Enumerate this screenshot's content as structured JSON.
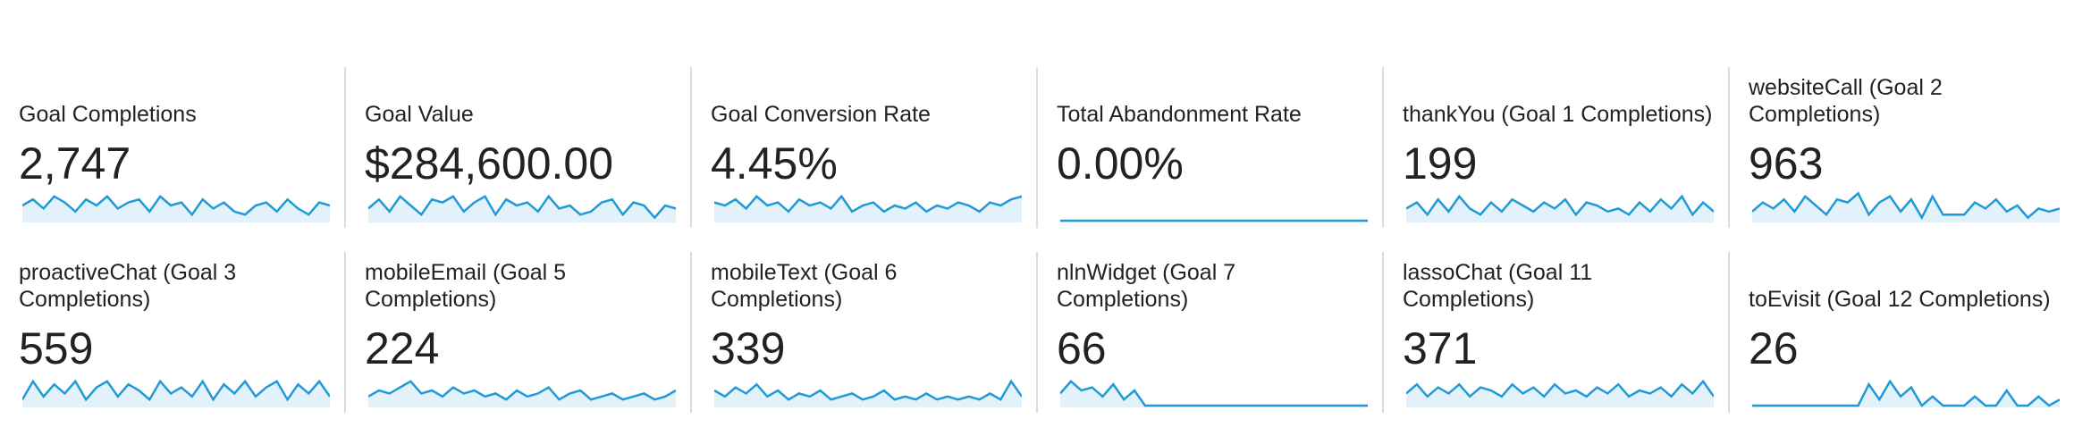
{
  "metrics": [
    {
      "label": "Goal Completions",
      "value": "2,747",
      "sparkline": [
        5,
        7,
        4,
        8,
        6,
        3,
        7,
        5,
        8,
        4,
        6,
        7,
        3,
        8,
        5,
        6,
        2,
        7,
        4,
        6,
        3,
        2,
        5,
        6,
        3,
        7,
        4,
        2,
        6,
        5
      ]
    },
    {
      "label": "Goal Value",
      "value": "$284,600.00",
      "sparkline": [
        4,
        7,
        3,
        8,
        5,
        2,
        7,
        6,
        8,
        3,
        6,
        8,
        2,
        7,
        5,
        6,
        3,
        8,
        4,
        5,
        2,
        3,
        6,
        7,
        2,
        6,
        5,
        1,
        5,
        4
      ]
    },
    {
      "label": "Goal Conversion Rate",
      "value": "4.45%",
      "sparkline": [
        6,
        5,
        7,
        4,
        8,
        5,
        6,
        3,
        7,
        5,
        6,
        4,
        8,
        3,
        5,
        6,
        3,
        5,
        4,
        6,
        3,
        5,
        4,
        6,
        5,
        3,
        6,
        5,
        7,
        8
      ]
    },
    {
      "label": "Total Abandonment Rate",
      "value": "0.00%",
      "sparkline": [
        0,
        0,
        0,
        0,
        0,
        0,
        0,
        0,
        0,
        0,
        0,
        0,
        0,
        0,
        0,
        0,
        0,
        0,
        0,
        0,
        0,
        0,
        0,
        0,
        0,
        0,
        0,
        0,
        0,
        0
      ]
    },
    {
      "label": "thankYou (Goal 1 Completions)",
      "value": "199",
      "sparkline": [
        4,
        6,
        2,
        7,
        3,
        8,
        4,
        2,
        6,
        3,
        7,
        5,
        3,
        6,
        4,
        7,
        2,
        6,
        5,
        3,
        4,
        2,
        6,
        3,
        7,
        4,
        8,
        2,
        6,
        3
      ]
    },
    {
      "label": "websiteCall (Goal 2 Completions)",
      "value": "963",
      "sparkline": [
        3,
        6,
        4,
        7,
        3,
        8,
        5,
        2,
        7,
        6,
        9,
        2,
        6,
        8,
        3,
        7,
        1,
        8,
        2,
        2,
        2,
        6,
        4,
        7,
        3,
        5,
        1,
        4,
        3,
        4
      ]
    },
    {
      "label": "proactiveChat (Goal 3 Completions)",
      "value": "559",
      "sparkline": [
        2,
        8,
        3,
        7,
        4,
        8,
        2,
        6,
        8,
        3,
        7,
        5,
        2,
        8,
        4,
        6,
        3,
        8,
        2,
        7,
        4,
        8,
        3,
        6,
        8,
        2,
        7,
        4,
        8,
        3
      ]
    },
    {
      "label": "mobileEmail (Goal 5 Completions)",
      "value": "224",
      "sparkline": [
        3,
        5,
        4,
        6,
        8,
        4,
        5,
        3,
        6,
        4,
        5,
        3,
        4,
        2,
        5,
        3,
        4,
        6,
        2,
        4,
        5,
        2,
        3,
        4,
        2,
        3,
        4,
        2,
        3,
        5
      ]
    },
    {
      "label": "mobileText (Goal 6 Completions)",
      "value": "339",
      "sparkline": [
        5,
        3,
        6,
        4,
        7,
        3,
        5,
        2,
        4,
        3,
        5,
        2,
        3,
        4,
        2,
        3,
        5,
        2,
        3,
        2,
        4,
        2,
        3,
        2,
        3,
        2,
        4,
        2,
        8,
        3
      ]
    },
    {
      "label": "nlnWidget (Goal 7 Completions)",
      "value": "66",
      "sparkline": [
        4,
        8,
        5,
        6,
        3,
        7,
        2,
        5,
        0,
        0,
        0,
        0,
        0,
        0,
        0,
        0,
        0,
        0,
        0,
        0,
        0,
        0,
        0,
        0,
        0,
        0,
        0,
        0,
        0,
        0
      ]
    },
    {
      "label": "lassoChat (Goal 11 Completions)",
      "value": "371",
      "sparkline": [
        4,
        7,
        3,
        6,
        4,
        7,
        3,
        6,
        5,
        3,
        7,
        4,
        6,
        3,
        7,
        4,
        5,
        3,
        6,
        4,
        7,
        3,
        5,
        4,
        6,
        3,
        7,
        4,
        8,
        3
      ]
    },
    {
      "label": "toEvisit (Goal 12 Completions)",
      "value": "26",
      "sparkline": [
        0,
        0,
        0,
        0,
        0,
        0,
        0,
        0,
        0,
        0,
        0,
        7,
        2,
        8,
        3,
        6,
        0,
        3,
        0,
        0,
        0,
        3,
        0,
        0,
        5,
        0,
        0,
        3,
        0,
        2
      ]
    }
  ]
}
